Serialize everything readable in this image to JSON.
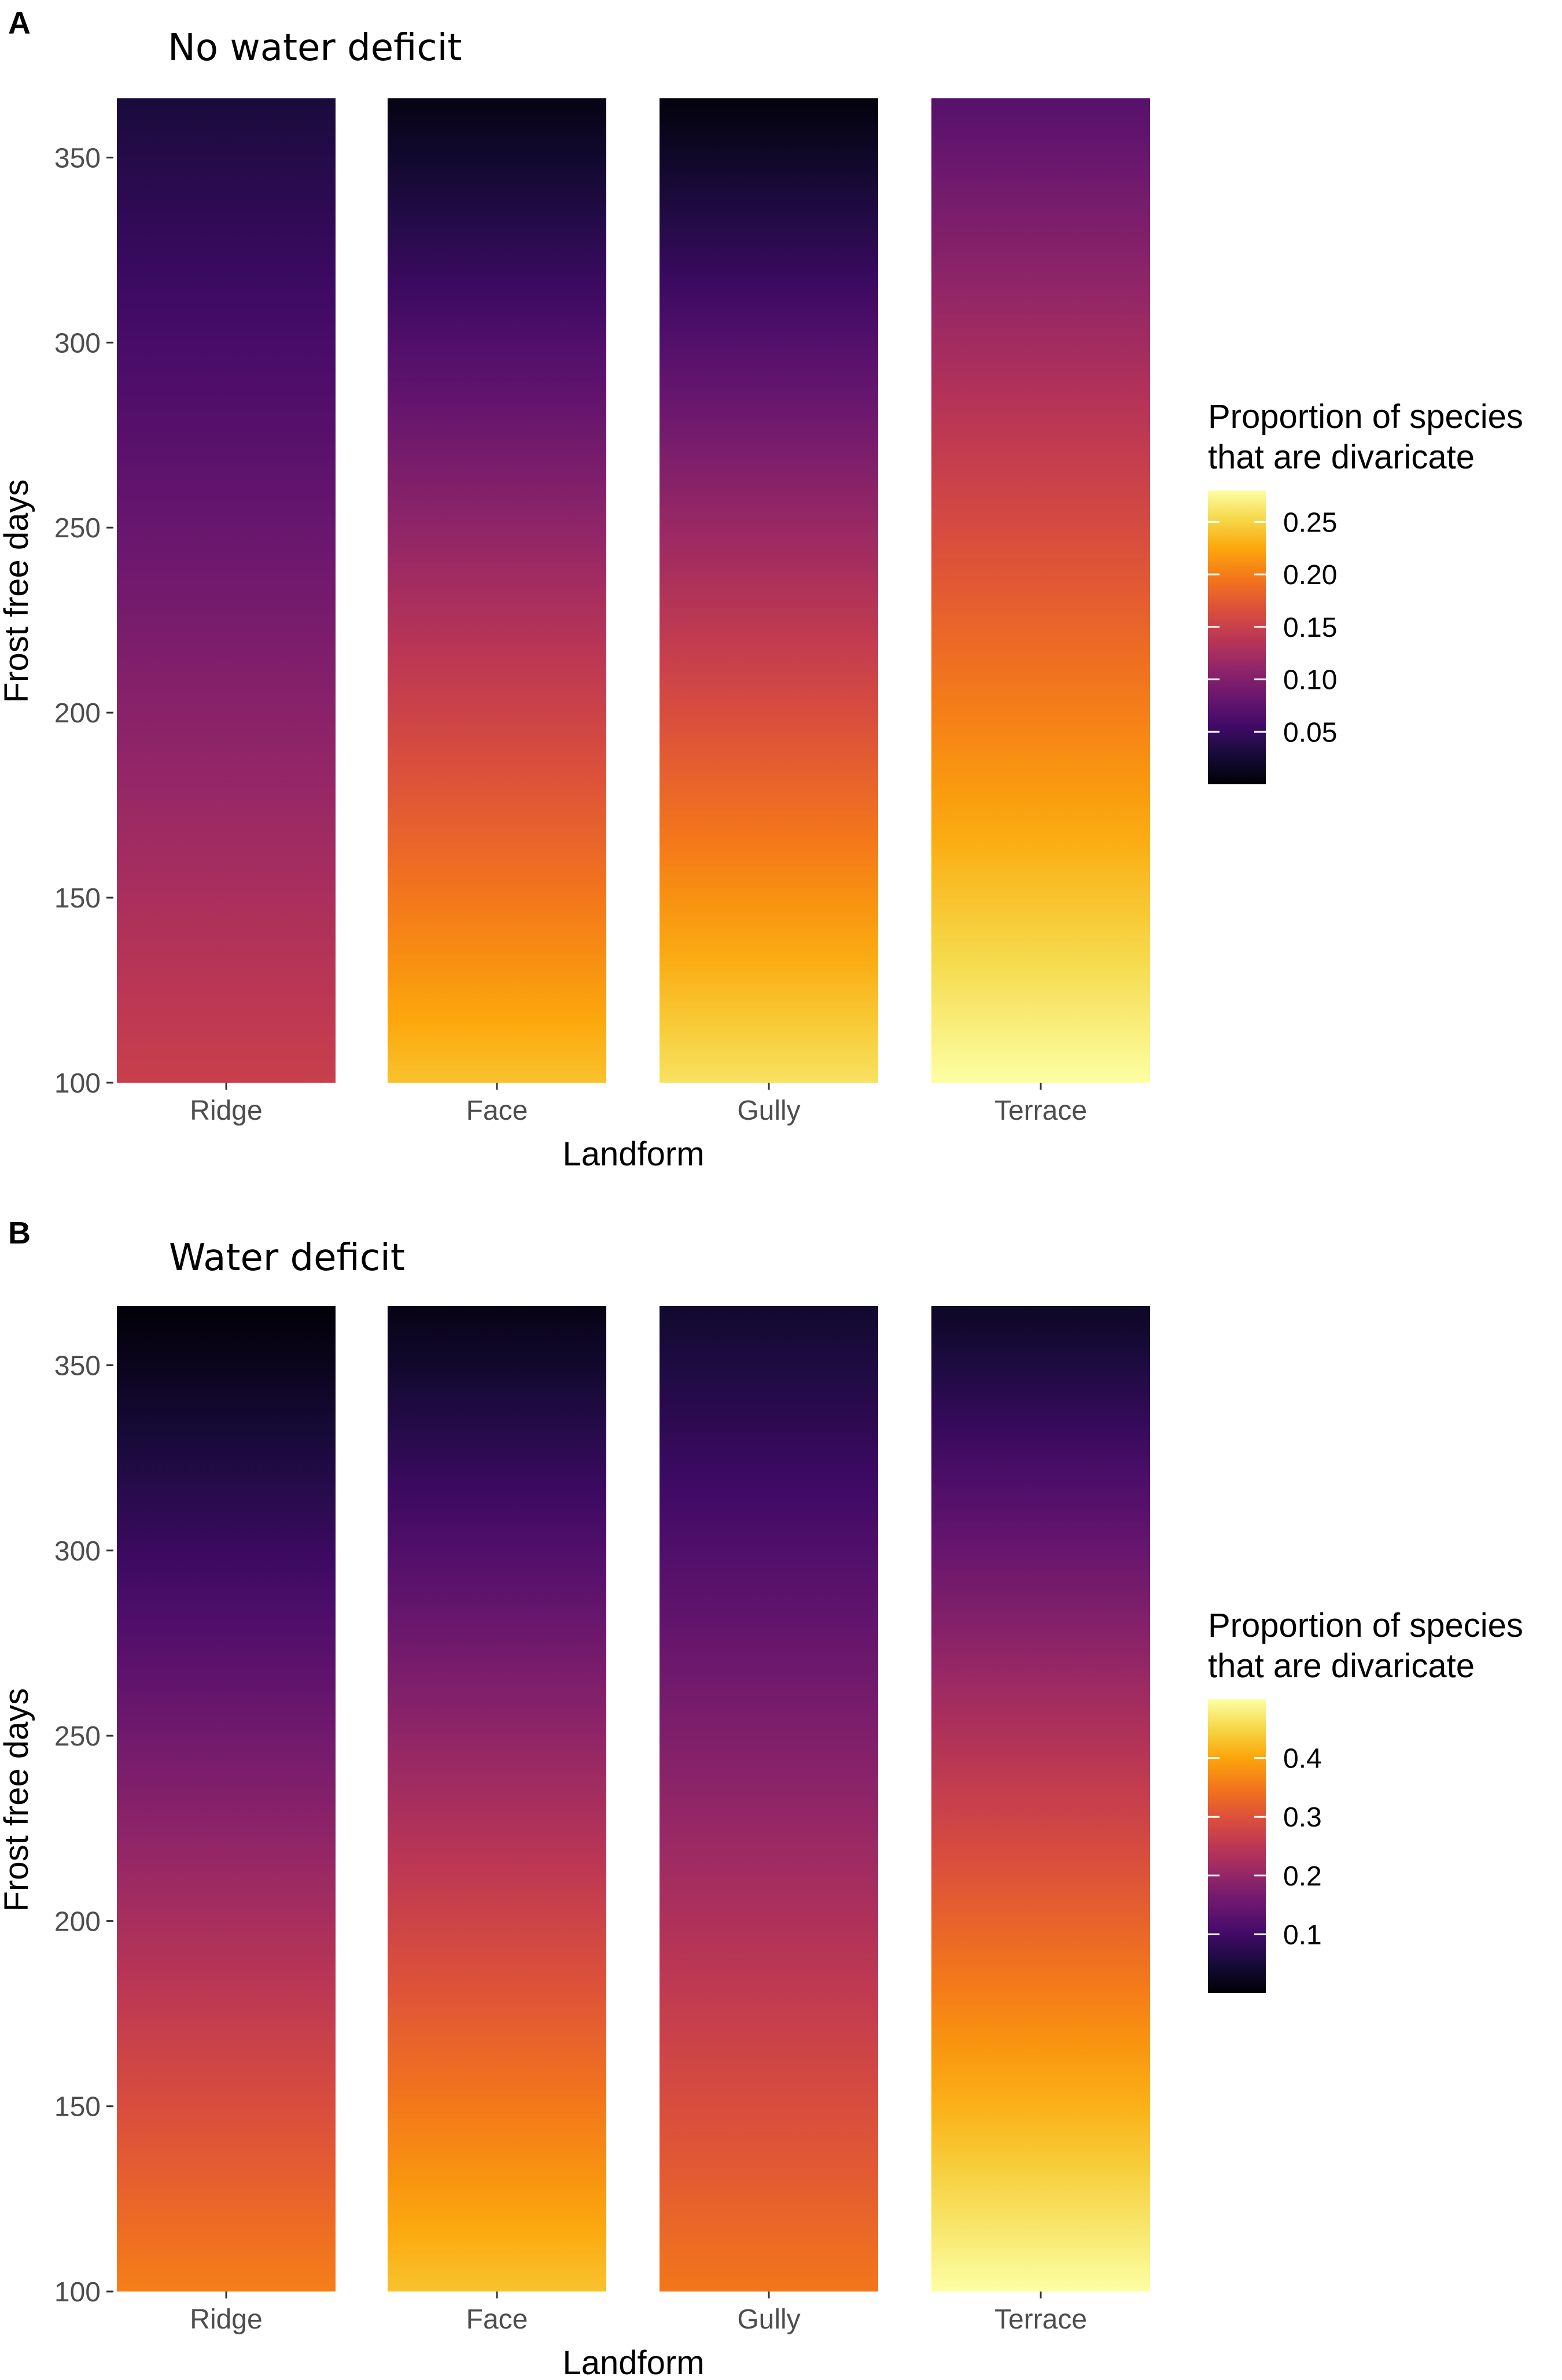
{
  "chart_data": [
    {
      "panel": "A",
      "type": "heatmap",
      "title": "No water deficit",
      "xlabel": "Landform",
      "ylabel": "Frost free days",
      "categories": [
        "Ridge",
        "Face",
        "Gully",
        "Terrace"
      ],
      "ylim": [
        100,
        366
      ],
      "yticks": [
        100,
        150,
        200,
        250,
        300,
        350
      ],
      "ytick_labels": [
        "100",
        "150",
        "200",
        "250",
        "300",
        "350"
      ],
      "series": [
        {
          "name": "Ridge",
          "frost_free_days": [
            366,
            100
          ],
          "proportion": [
            0.03,
            0.15
          ]
        },
        {
          "name": "Face",
          "frost_free_days": [
            366,
            100
          ],
          "proportion": [
            0.008,
            0.24
          ]
        },
        {
          "name": "Gully",
          "frost_free_days": [
            366,
            100
          ],
          "proportion": [
            0.004,
            0.26
          ]
        },
        {
          "name": "Terrace",
          "frost_free_days": [
            366,
            100
          ],
          "proportion": [
            0.07,
            0.28
          ]
        }
      ],
      "legend": {
        "title_lines": [
          "Proportion of species",
          "that are divaricate"
        ],
        "min": 0.0,
        "max": 0.28,
        "ticks": [
          0.05,
          0.1,
          0.15,
          0.2,
          0.25
        ],
        "tick_labels": [
          "0.05",
          "0.10",
          "0.15",
          "0.20",
          "0.25"
        ],
        "colormap": "inferno"
      }
    },
    {
      "panel": "B",
      "type": "heatmap",
      "title": "Water deficit",
      "xlabel": "Landform",
      "ylabel": "Frost free days",
      "categories": [
        "Ridge",
        "Face",
        "Gully",
        "Terrace"
      ],
      "ylim": [
        100,
        366
      ],
      "yticks": [
        100,
        150,
        200,
        250,
        300,
        350
      ],
      "ytick_labels": [
        "100",
        "150",
        "200",
        "250",
        "300",
        "350"
      ],
      "series": [
        {
          "name": "Ridge",
          "frost_free_days": [
            366,
            100
          ],
          "proportion": [
            0.002,
            0.36
          ]
        },
        {
          "name": "Face",
          "frost_free_days": [
            366,
            100
          ],
          "proportion": [
            0.015,
            0.43
          ]
        },
        {
          "name": "Gully",
          "frost_free_days": [
            366,
            100
          ],
          "proportion": [
            0.04,
            0.35
          ]
        },
        {
          "name": "Terrace",
          "frost_free_days": [
            366,
            100
          ],
          "proportion": [
            0.03,
            0.5
          ]
        }
      ],
      "legend": {
        "title_lines": [
          "Proportion of species",
          "that are divaricate"
        ],
        "min": 0.0,
        "max": 0.5,
        "ticks": [
          0.1,
          0.2,
          0.3,
          0.4
        ],
        "tick_labels": [
          "0.1",
          "0.2",
          "0.3",
          "0.4"
        ],
        "colormap": "inferno"
      }
    }
  ]
}
